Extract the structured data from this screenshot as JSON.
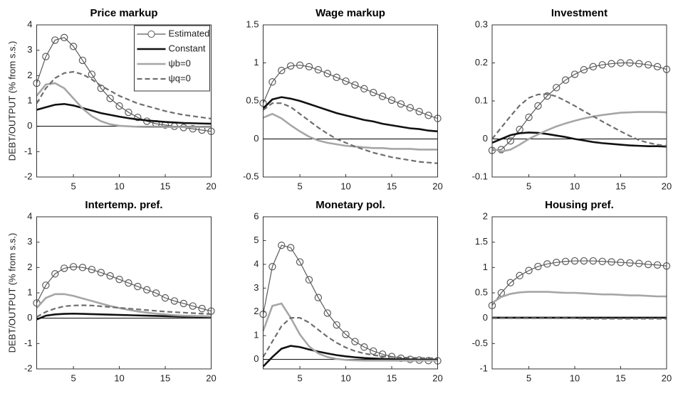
{
  "chart_data": [
    {
      "type": "line",
      "title": "Price markup",
      "ylabel": "DEBT/OUTPUT (% from s.s.)",
      "legend": "upper right",
      "zero_line": true,
      "x": [
        1,
        2,
        3,
        4,
        5,
        6,
        7,
        8,
        9,
        10,
        11,
        12,
        13,
        14,
        15,
        16,
        17,
        18,
        19,
        20
      ],
      "xlim": [
        1,
        20
      ],
      "xticks": [
        5,
        10,
        15,
        20
      ],
      "ylim": [
        -2,
        4
      ],
      "yticks": [
        -2,
        -1,
        0,
        1,
        2,
        3,
        4
      ],
      "series": [
        {
          "name": "Estimated",
          "color": "#5a5a5a",
          "marker": "circle",
          "values": [
            1.7,
            2.75,
            3.4,
            3.5,
            3.15,
            2.6,
            2.05,
            1.5,
            1.1,
            0.8,
            0.55,
            0.35,
            0.2,
            0.1,
            0.05,
            0,
            -0.05,
            -0.1,
            -0.15,
            -0.2
          ]
        },
        {
          "name": "Constant",
          "color": "#111111",
          "values": [
            0.65,
            0.75,
            0.85,
            0.88,
            0.82,
            0.72,
            0.62,
            0.52,
            0.45,
            0.38,
            0.32,
            0.27,
            0.23,
            0.2,
            0.17,
            0.15,
            0.13,
            0.12,
            0.11,
            0.1
          ]
        },
        {
          "name": "ψb=0",
          "color": "#a6a6a6",
          "values": [
            1.2,
            1.65,
            1.7,
            1.5,
            1.1,
            0.7,
            0.4,
            0.2,
            0.08,
            0.02,
            0,
            -0.02,
            -0.03,
            -0.03,
            -0.03,
            -0.03,
            -0.03,
            -0.03,
            -0.03,
            -0.03
          ]
        },
        {
          "name": "ψq=0",
          "color": "#6e6e6e",
          "line_style": "dashed",
          "values": [
            0.9,
            1.5,
            1.9,
            2.1,
            2.15,
            2.05,
            1.85,
            1.6,
            1.4,
            1.2,
            1.05,
            0.9,
            0.8,
            0.7,
            0.6,
            0.52,
            0.45,
            0.4,
            0.35,
            0.3
          ]
        }
      ]
    },
    {
      "type": "line",
      "title": "Wage markup",
      "zero_line": true,
      "x": [
        1,
        2,
        3,
        4,
        5,
        6,
        7,
        8,
        9,
        10,
        11,
        12,
        13,
        14,
        15,
        16,
        17,
        18,
        19,
        20
      ],
      "xlim": [
        1,
        20
      ],
      "xticks": [
        5,
        10,
        15,
        20
      ],
      "ylim": [
        -0.5,
        1.5
      ],
      "yticks": [
        -0.5,
        0,
        0.5,
        1,
        1.5
      ],
      "series": [
        {
          "color": "#5a5a5a",
          "marker": "circle",
          "values": [
            0.47,
            0.75,
            0.9,
            0.96,
            0.97,
            0.95,
            0.91,
            0.86,
            0.81,
            0.76,
            0.71,
            0.66,
            0.61,
            0.56,
            0.51,
            0.46,
            0.41,
            0.36,
            0.31,
            0.27
          ]
        },
        {
          "color": "#111111",
          "values": [
            0.4,
            0.52,
            0.55,
            0.53,
            0.5,
            0.46,
            0.42,
            0.38,
            0.34,
            0.31,
            0.28,
            0.25,
            0.23,
            0.2,
            0.18,
            0.16,
            0.14,
            0.13,
            0.11,
            0.1
          ]
        },
        {
          "color": "#a6a6a6",
          "values": [
            0.28,
            0.33,
            0.27,
            0.18,
            0.1,
            0.03,
            -0.02,
            -0.05,
            -0.07,
            -0.09,
            -0.1,
            -0.11,
            -0.12,
            -0.12,
            -0.13,
            -0.13,
            -0.13,
            -0.14,
            -0.14,
            -0.14
          ]
        },
        {
          "color": "#6e6e6e",
          "line_style": "dashed",
          "values": [
            0.38,
            0.47,
            0.47,
            0.42,
            0.33,
            0.24,
            0.15,
            0.07,
            0,
            -0.05,
            -0.1,
            -0.14,
            -0.18,
            -0.21,
            -0.24,
            -0.26,
            -0.28,
            -0.3,
            -0.31,
            -0.32
          ]
        }
      ]
    },
    {
      "type": "line",
      "title": "Investment",
      "zero_line": true,
      "x": [
        1,
        2,
        3,
        4,
        5,
        6,
        7,
        8,
        9,
        10,
        11,
        12,
        13,
        14,
        15,
        16,
        17,
        18,
        19,
        20
      ],
      "xlim": [
        1,
        20
      ],
      "xticks": [
        5,
        10,
        15,
        20
      ],
      "ylim": [
        -0.1,
        0.3
      ],
      "yticks": [
        -0.1,
        0,
        0.1,
        0.2,
        0.3
      ],
      "series": [
        {
          "color": "#5a5a5a",
          "marker": "circle",
          "values": [
            -0.03,
            -0.028,
            -0.005,
            0.025,
            0.057,
            0.087,
            0.113,
            0.135,
            0.155,
            0.17,
            0.182,
            0.19,
            0.195,
            0.198,
            0.2,
            0.2,
            0.198,
            0.195,
            0.19,
            0.183
          ]
        },
        {
          "color": "#111111",
          "values": [
            -0.01,
            0,
            0.01,
            0.015,
            0.017,
            0.016,
            0.013,
            0.009,
            0.005,
            0,
            -0.004,
            -0.008,
            -0.011,
            -0.013,
            -0.015,
            -0.017,
            -0.018,
            -0.019,
            -0.019,
            -0.02
          ]
        },
        {
          "color": "#a6a6a6",
          "values": [
            -0.025,
            -0.033,
            -0.028,
            -0.015,
            0,
            0.012,
            0.023,
            0.033,
            0.041,
            0.048,
            0.054,
            0.059,
            0.063,
            0.066,
            0.069,
            0.07,
            0.071,
            0.071,
            0.071,
            0.07
          ]
        },
        {
          "color": "#6e6e6e",
          "line_style": "dashed",
          "values": [
            0,
            0.03,
            0.06,
            0.088,
            0.108,
            0.117,
            0.118,
            0.112,
            0.1,
            0.087,
            0.073,
            0.06,
            0.046,
            0.033,
            0.02,
            0.008,
            -0.003,
            -0.01,
            -0.015,
            -0.018
          ]
        }
      ]
    },
    {
      "type": "line",
      "title": "Intertemp. pref.",
      "ylabel": "DEBT/OUTPUT (% from s.s.)",
      "zero_line": true,
      "x": [
        1,
        2,
        3,
        4,
        5,
        6,
        7,
        8,
        9,
        10,
        11,
        12,
        13,
        14,
        15,
        16,
        17,
        18,
        19,
        20
      ],
      "xlim": [
        1,
        20
      ],
      "xticks": [
        5,
        10,
        15,
        20
      ],
      "ylim": [
        -2,
        4
      ],
      "yticks": [
        -2,
        -1,
        0,
        1,
        2,
        3,
        4
      ],
      "series": [
        {
          "color": "#5a5a5a",
          "marker": "circle",
          "values": [
            0.6,
            1.3,
            1.75,
            1.97,
            2.03,
            2.0,
            1.92,
            1.8,
            1.67,
            1.53,
            1.39,
            1.25,
            1.12,
            0.99,
            0.8,
            0.68,
            0.58,
            0.48,
            0.38,
            0.28
          ]
        },
        {
          "color": "#111111",
          "values": [
            -0.05,
            0.1,
            0.15,
            0.17,
            0.18,
            0.17,
            0.16,
            0.15,
            0.14,
            0.13,
            0.12,
            0.11,
            0.1,
            0.09,
            0.08,
            0.07,
            0.06,
            0.06,
            0.05,
            0.05
          ]
        },
        {
          "color": "#a6a6a6",
          "values": [
            0.4,
            0.8,
            0.95,
            0.95,
            0.88,
            0.78,
            0.68,
            0.58,
            0.48,
            0.4,
            0.33,
            0.27,
            0.22,
            0.18,
            0.15,
            0.12,
            0.1,
            0.09,
            0.08,
            0.07
          ]
        },
        {
          "color": "#6e6e6e",
          "line_style": "dashed",
          "values": [
            0.05,
            0.25,
            0.38,
            0.47,
            0.5,
            0.51,
            0.5,
            0.47,
            0.44,
            0.41,
            0.38,
            0.35,
            0.32,
            0.29,
            0.26,
            0.24,
            0.22,
            0.2,
            0.18,
            0.16
          ]
        }
      ]
    },
    {
      "type": "line",
      "title": "Monetary pol.",
      "zero_line": true,
      "x": [
        1,
        2,
        3,
        4,
        5,
        6,
        7,
        8,
        9,
        10,
        11,
        12,
        13,
        14,
        15,
        16,
        17,
        18,
        19,
        20
      ],
      "xlim": [
        1,
        20
      ],
      "xticks": [
        5,
        10,
        15,
        20
      ],
      "ylim": [
        -0.4,
        6
      ],
      "yticks": [
        0,
        1,
        2,
        3,
        4,
        5,
        6
      ],
      "series": [
        {
          "color": "#5a5a5a",
          "marker": "circle",
          "values": [
            1.9,
            3.9,
            4.8,
            4.7,
            4.1,
            3.35,
            2.6,
            1.95,
            1.45,
            1.05,
            0.75,
            0.52,
            0.35,
            0.22,
            0.12,
            0.05,
            0,
            -0.03,
            -0.05,
            -0.06
          ]
        },
        {
          "color": "#111111",
          "values": [
            -0.3,
            0.1,
            0.45,
            0.57,
            0.52,
            0.42,
            0.33,
            0.25,
            0.18,
            0.13,
            0.09,
            0.06,
            0.04,
            0.02,
            0.01,
            0,
            0,
            -0.01,
            -0.01,
            -0.01
          ]
        },
        {
          "color": "#a6a6a6",
          "values": [
            1.2,
            2.25,
            2.35,
            1.75,
            1.05,
            0.55,
            0.25,
            0.1,
            0.02,
            -0.02,
            -0.04,
            -0.05,
            -0.05,
            -0.05,
            -0.05,
            -0.05,
            -0.05,
            -0.05,
            -0.05,
            -0.05
          ]
        },
        {
          "color": "#6e6e6e",
          "line_style": "dashed",
          "values": [
            0.1,
            0.75,
            1.4,
            1.75,
            1.75,
            1.55,
            1.25,
            0.95,
            0.7,
            0.5,
            0.35,
            0.25,
            0.18,
            0.13,
            0.1,
            0.08,
            0.07,
            0.06,
            0.05,
            0.05
          ]
        }
      ]
    },
    {
      "type": "line",
      "title": "Housing pref.",
      "zero_line": true,
      "x": [
        1,
        2,
        3,
        4,
        5,
        6,
        7,
        8,
        9,
        10,
        11,
        12,
        13,
        14,
        15,
        16,
        17,
        18,
        19,
        20
      ],
      "xlim": [
        1,
        20
      ],
      "xticks": [
        5,
        10,
        15,
        20
      ],
      "ylim": [
        -1,
        2
      ],
      "yticks": [
        -1,
        -0.5,
        0,
        0.5,
        1,
        1.5,
        2
      ],
      "series": [
        {
          "color": "#5a5a5a",
          "marker": "circle",
          "values": [
            0.25,
            0.5,
            0.7,
            0.84,
            0.94,
            1.02,
            1.07,
            1.1,
            1.12,
            1.13,
            1.13,
            1.13,
            1.12,
            1.11,
            1.1,
            1.09,
            1.08,
            1.06,
            1.05,
            1.03
          ]
        },
        {
          "color": "#111111",
          "values": [
            0.01,
            0.01,
            0.01,
            0.01,
            0.01,
            0.01,
            0.01,
            0.01,
            0.01,
            0.01,
            0.01,
            0.01,
            0.01,
            0.01,
            0.01,
            0.01,
            0.01,
            0.01,
            0.01,
            0.01
          ]
        },
        {
          "color": "#a6a6a6",
          "values": [
            0.3,
            0.42,
            0.48,
            0.51,
            0.52,
            0.52,
            0.52,
            0.51,
            0.5,
            0.5,
            0.49,
            0.48,
            0.47,
            0.47,
            0.46,
            0.45,
            0.45,
            0.44,
            0.43,
            0.43
          ]
        },
        {
          "color": "#6e6e6e",
          "line_style": "dashed",
          "values": [
            0,
            0,
            0,
            0,
            0,
            0,
            0,
            0,
            0,
            0,
            -0.01,
            -0.01,
            -0.01,
            -0.01,
            -0.01,
            -0.01,
            -0.01,
            -0.01,
            -0.01,
            -0.01
          ]
        }
      ]
    }
  ]
}
